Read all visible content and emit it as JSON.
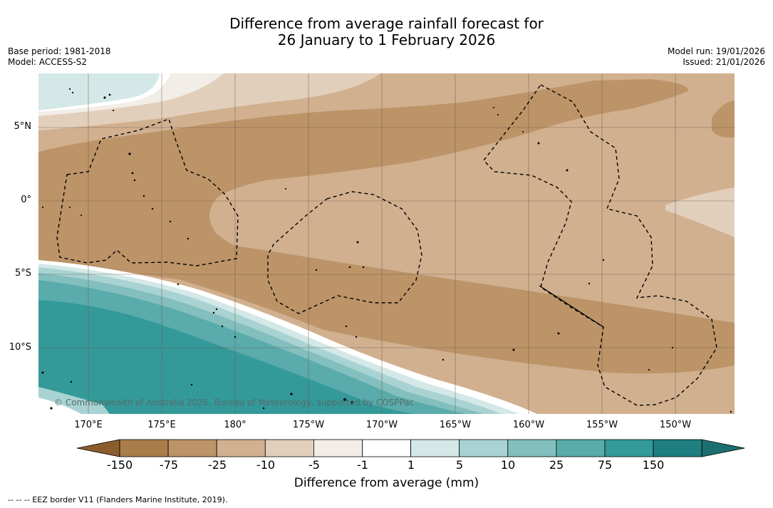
{
  "title_line1": "Difference from average rainfall forecast for",
  "title_line2": "26 January to 1 February 2026",
  "base_period": "Base period: 1981-2018",
  "model": "Model: ACCESS-S2",
  "model_run": "Model run: 19/01/2026",
  "issued": "Issued: 21/01/2026",
  "lat_labels": [
    "5°N",
    "0°",
    "5°S",
    "10°S"
  ],
  "lon_labels": [
    "170°E",
    "175°E",
    "180°",
    "175°W",
    "170°W",
    "165°W",
    "160°W",
    "155°W",
    "150°W"
  ],
  "copyright": "© Commonwealth of Australia 2026, Bureau of Meteorology, supported by COSPPac",
  "colorbar": {
    "label": "Difference from average (mm)",
    "ticks": [
      "-150",
      "-75",
      "-25",
      "-10",
      "-5",
      "-1",
      "1",
      "5",
      "10",
      "25",
      "75",
      "150"
    ],
    "colors": [
      "#a97c4a",
      "#bc9468",
      "#d1b090",
      "#e2cfbb",
      "#f2ede6",
      "#ffffff",
      "#d4e8e8",
      "#a9d3d2",
      "#82bfbe",
      "#5aabab",
      "#349999",
      "#1f7f80"
    ]
  },
  "footer": "-- -- -- EEZ border V11 (Flanders Marine Institute, 2019)."
}
